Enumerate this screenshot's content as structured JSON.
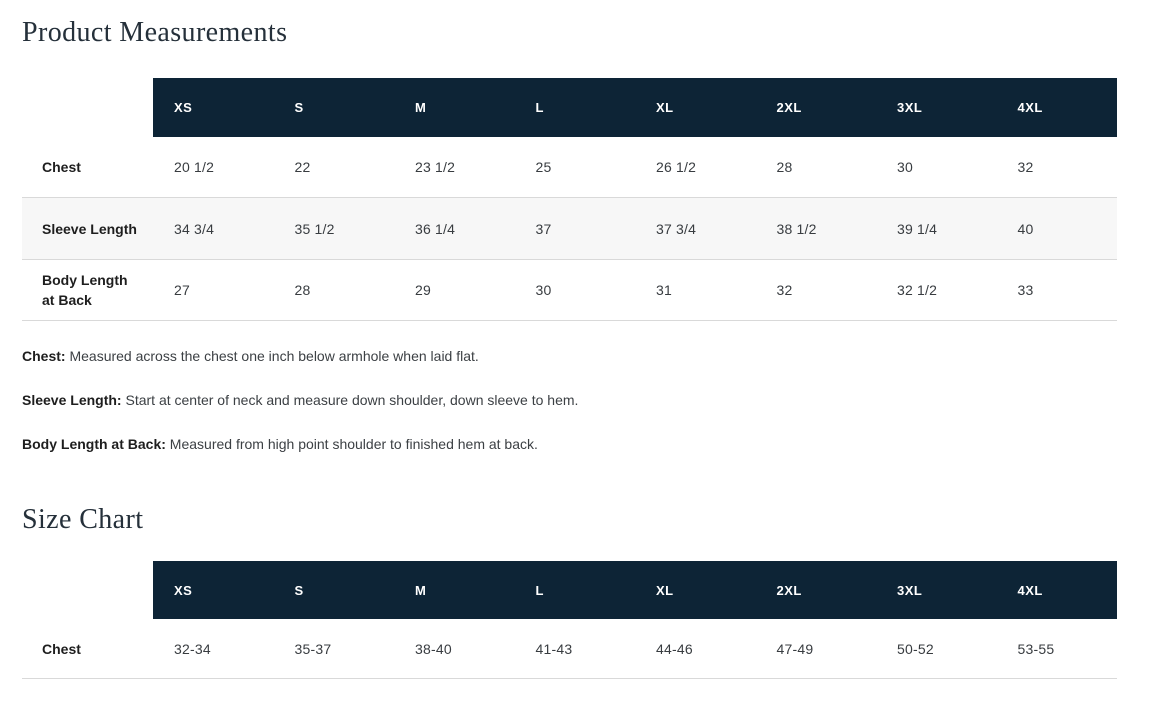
{
  "theme": {
    "header_bg": "#0d2436",
    "header_text": "#ffffff",
    "alt_row_bg": "#f7f7f7",
    "border": "#d9d9d9",
    "title_color": "#25303a",
    "text_color": "#383c40"
  },
  "product_measurements": {
    "title": "Product Measurements",
    "table": {
      "columns": [
        "XS",
        "S",
        "M",
        "L",
        "XL",
        "2XL",
        "3XL",
        "4XL"
      ],
      "rows": [
        {
          "label": "Chest",
          "values": [
            "20 1/2",
            "22",
            "23 1/2",
            "25",
            "26 1/2",
            "28",
            "30",
            "32"
          ]
        },
        {
          "label": "Sleeve Length",
          "values": [
            "34 3/4",
            "35 1/2",
            "36 1/4",
            "37",
            "37 3/4",
            "38 1/2",
            "39 1/4",
            "40"
          ]
        },
        {
          "label": "Body Length at Back",
          "values": [
            "27",
            "28",
            "29",
            "30",
            "31",
            "32",
            "32 1/2",
            "33"
          ]
        }
      ]
    },
    "notes": [
      {
        "label": "Chest:",
        "text": "Measured across the chest one inch below armhole when laid flat."
      },
      {
        "label": "Sleeve Length:",
        "text": "Start at center of neck and measure down shoulder, down sleeve to hem."
      },
      {
        "label": "Body Length at Back:",
        "text": "Measured from high point shoulder to finished hem at back."
      }
    ]
  },
  "size_chart": {
    "title": "Size Chart",
    "table": {
      "columns": [
        "XS",
        "S",
        "M",
        "L",
        "XL",
        "2XL",
        "3XL",
        "4XL"
      ],
      "rows": [
        {
          "label": "Chest",
          "values": [
            "32-34",
            "35-37",
            "38-40",
            "41-43",
            "44-46",
            "47-49",
            "50-52",
            "53-55"
          ]
        }
      ]
    }
  }
}
